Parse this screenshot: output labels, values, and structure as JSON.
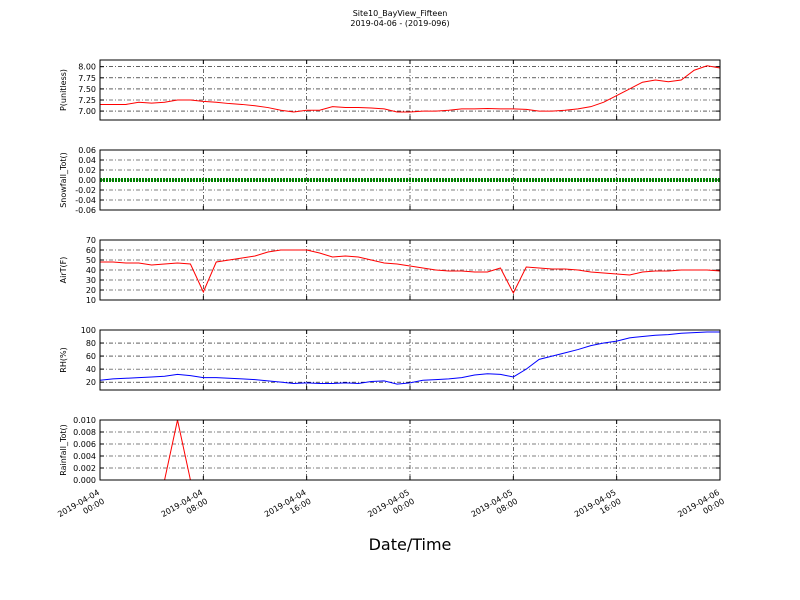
{
  "figure": {
    "title": "Site10_BayView_Fifteen",
    "subtitle": "2019-04-06 - (2019-096)"
  },
  "x_axis": {
    "label": "Date/Time",
    "xlim": [
      "2019-04-04 00:00",
      "2019-04-06 00:00"
    ],
    "xticks": [
      "2019-04-04 00:00",
      "2019-04-04 08:00",
      "2019-04-04 16:00",
      "2019-04-05 00:00",
      "2019-04-05 08:00",
      "2019-04-05 16:00",
      "2019-04-06 00:00"
    ],
    "x": [
      "2019-04-04 00:00",
      "2019-04-04 01:00",
      "2019-04-04 02:00",
      "2019-04-04 03:00",
      "2019-04-04 04:00",
      "2019-04-04 05:00",
      "2019-04-04 06:00",
      "2019-04-04 07:00",
      "2019-04-04 08:00",
      "2019-04-04 09:00",
      "2019-04-04 10:00",
      "2019-04-04 11:00",
      "2019-04-04 12:00",
      "2019-04-04 13:00",
      "2019-04-04 14:00",
      "2019-04-04 15:00",
      "2019-04-04 16:00",
      "2019-04-04 17:00",
      "2019-04-04 18:00",
      "2019-04-04 19:00",
      "2019-04-04 20:00",
      "2019-04-04 21:00",
      "2019-04-04 22:00",
      "2019-04-04 23:00",
      "2019-04-05 00:00",
      "2019-04-05 01:00",
      "2019-04-05 02:00",
      "2019-04-05 03:00",
      "2019-04-05 04:00",
      "2019-04-05 05:00",
      "2019-04-05 06:00",
      "2019-04-05 07:00",
      "2019-04-05 08:00",
      "2019-04-05 09:00",
      "2019-04-05 10:00",
      "2019-04-05 11:00",
      "2019-04-05 12:00",
      "2019-04-05 13:00",
      "2019-04-05 14:00",
      "2019-04-05 15:00",
      "2019-04-05 16:00",
      "2019-04-05 17:00",
      "2019-04-05 18:00",
      "2019-04-05 19:00",
      "2019-04-05 20:00",
      "2019-04-05 21:00",
      "2019-04-05 22:00",
      "2019-04-05 23:00",
      "2019-04-06 00:00"
    ]
  },
  "chart_data": [
    {
      "type": "line",
      "ylabel": "P(unitless)",
      "ylim": [
        6.8,
        8.15
      ],
      "grid": true,
      "yticks": [
        {
          "value": 7,
          "label": "7.00"
        },
        {
          "value": 7.25,
          "label": "7.25"
        },
        {
          "value": 7.5,
          "label": "7.50"
        },
        {
          "value": 7.75,
          "label": "7.75"
        },
        {
          "value": 8,
          "label": "8.00"
        }
      ],
      "series": [
        {
          "name": "P",
          "color": "#ff0000",
          "values": [
            7.15,
            7.15,
            7.15,
            7.2,
            7.18,
            7.2,
            7.25,
            7.25,
            7.22,
            7.2,
            7.17,
            7.15,
            7.12,
            7.08,
            7.02,
            6.98,
            7.02,
            7.02,
            7.1,
            7.08,
            7.08,
            7.07,
            7.05,
            6.98,
            6.98,
            7.0,
            7.0,
            7.02,
            7.05,
            7.05,
            7.06,
            7.05,
            7.05,
            7.04,
            7.0,
            7.0,
            7.02,
            7.05,
            7.1,
            7.2,
            7.35,
            7.5,
            7.65,
            7.7,
            7.66,
            7.7,
            7.92,
            8.02,
            7.97
          ]
        }
      ]
    },
    {
      "type": "line",
      "ylabel": "Snowfall_Tot()",
      "ylim": [
        -0.06,
        0.06
      ],
      "grid": true,
      "dotted": true,
      "yticks": [
        {
          "value": -0.06,
          "label": "-0.06"
        },
        {
          "value": -0.04,
          "label": "-0.04"
        },
        {
          "value": -0.02,
          "label": "-0.02"
        },
        {
          "value": 0,
          "label": "0.00"
        },
        {
          "value": 0.02,
          "label": "0.02"
        },
        {
          "value": 0.04,
          "label": "0.04"
        },
        {
          "value": 0.06,
          "label": "0.06"
        }
      ],
      "series": [
        {
          "name": "Snowfall_Tot",
          "color": "#008000",
          "values": [
            0,
            0,
            0,
            0,
            0,
            0,
            0,
            0,
            0,
            0,
            0,
            0,
            0,
            0,
            0,
            0,
            0,
            0,
            0,
            0,
            0,
            0,
            0,
            0,
            0,
            0,
            0,
            0,
            0,
            0,
            0,
            0,
            0,
            0,
            0,
            0,
            0,
            0,
            0,
            0,
            0,
            0,
            0,
            0,
            0,
            0,
            0,
            0,
            0
          ]
        }
      ]
    },
    {
      "type": "line",
      "ylabel": "AirT(F)",
      "ylim": [
        10,
        70
      ],
      "grid": true,
      "yticks": [
        10,
        20,
        30,
        40,
        50,
        60,
        70
      ],
      "series": [
        {
          "name": "AirT",
          "color": "#ff0000",
          "values": [
            48,
            48,
            47,
            47,
            45,
            46,
            47,
            46,
            18,
            48,
            50,
            52,
            54,
            58,
            60,
            60,
            60,
            57,
            53,
            54,
            53,
            50,
            47,
            46,
            44,
            42,
            40,
            39,
            39,
            38,
            38,
            42,
            17,
            43,
            42,
            41,
            41,
            40,
            38,
            37,
            36,
            35,
            38,
            39,
            39,
            40,
            40,
            40,
            39
          ]
        }
      ]
    },
    {
      "type": "line",
      "ylabel": "RH(%)",
      "ylim": [
        8,
        100
      ],
      "grid": true,
      "yticks": [
        20,
        40,
        60,
        80,
        100
      ],
      "series": [
        {
          "name": "RH",
          "color": "#0000ff",
          "values": [
            23,
            25,
            26,
            27,
            28,
            29,
            32,
            30,
            27,
            27,
            26,
            25,
            24,
            22,
            20,
            18,
            19,
            18,
            18,
            19,
            18,
            21,
            22,
            17,
            19,
            23,
            24,
            25,
            27,
            31,
            33,
            32,
            28,
            40,
            55,
            60,
            65,
            70,
            76,
            80,
            83,
            88,
            90,
            92,
            93,
            95,
            96,
            97,
            97
          ]
        }
      ]
    },
    {
      "type": "line",
      "ylabel": "Rainfall_Tot()",
      "ylim": [
        0,
        0.01
      ],
      "grid": true,
      "yticks": [
        {
          "value": 0,
          "label": "0.000"
        },
        {
          "value": 0.002,
          "label": "0.002"
        },
        {
          "value": 0.004,
          "label": "0.004"
        },
        {
          "value": 0.006,
          "label": "0.006"
        },
        {
          "value": 0.008,
          "label": "0.008"
        },
        {
          "value": 0.01,
          "label": "0.010"
        }
      ],
      "series": [
        {
          "name": "Rainfall_Tot",
          "color": "#ff0000",
          "values": [
            0,
            0,
            0,
            0,
            0,
            0,
            0.01,
            0,
            0,
            0,
            0,
            0,
            0,
            0,
            0,
            0,
            0,
            0,
            0,
            0,
            0,
            0,
            0,
            0,
            0,
            0,
            0,
            0,
            0,
            0,
            0,
            0,
            0,
            0,
            0,
            0,
            0,
            0,
            0,
            0,
            0,
            0,
            0,
            0,
            0,
            0,
            0,
            0,
            0
          ]
        }
      ]
    }
  ]
}
